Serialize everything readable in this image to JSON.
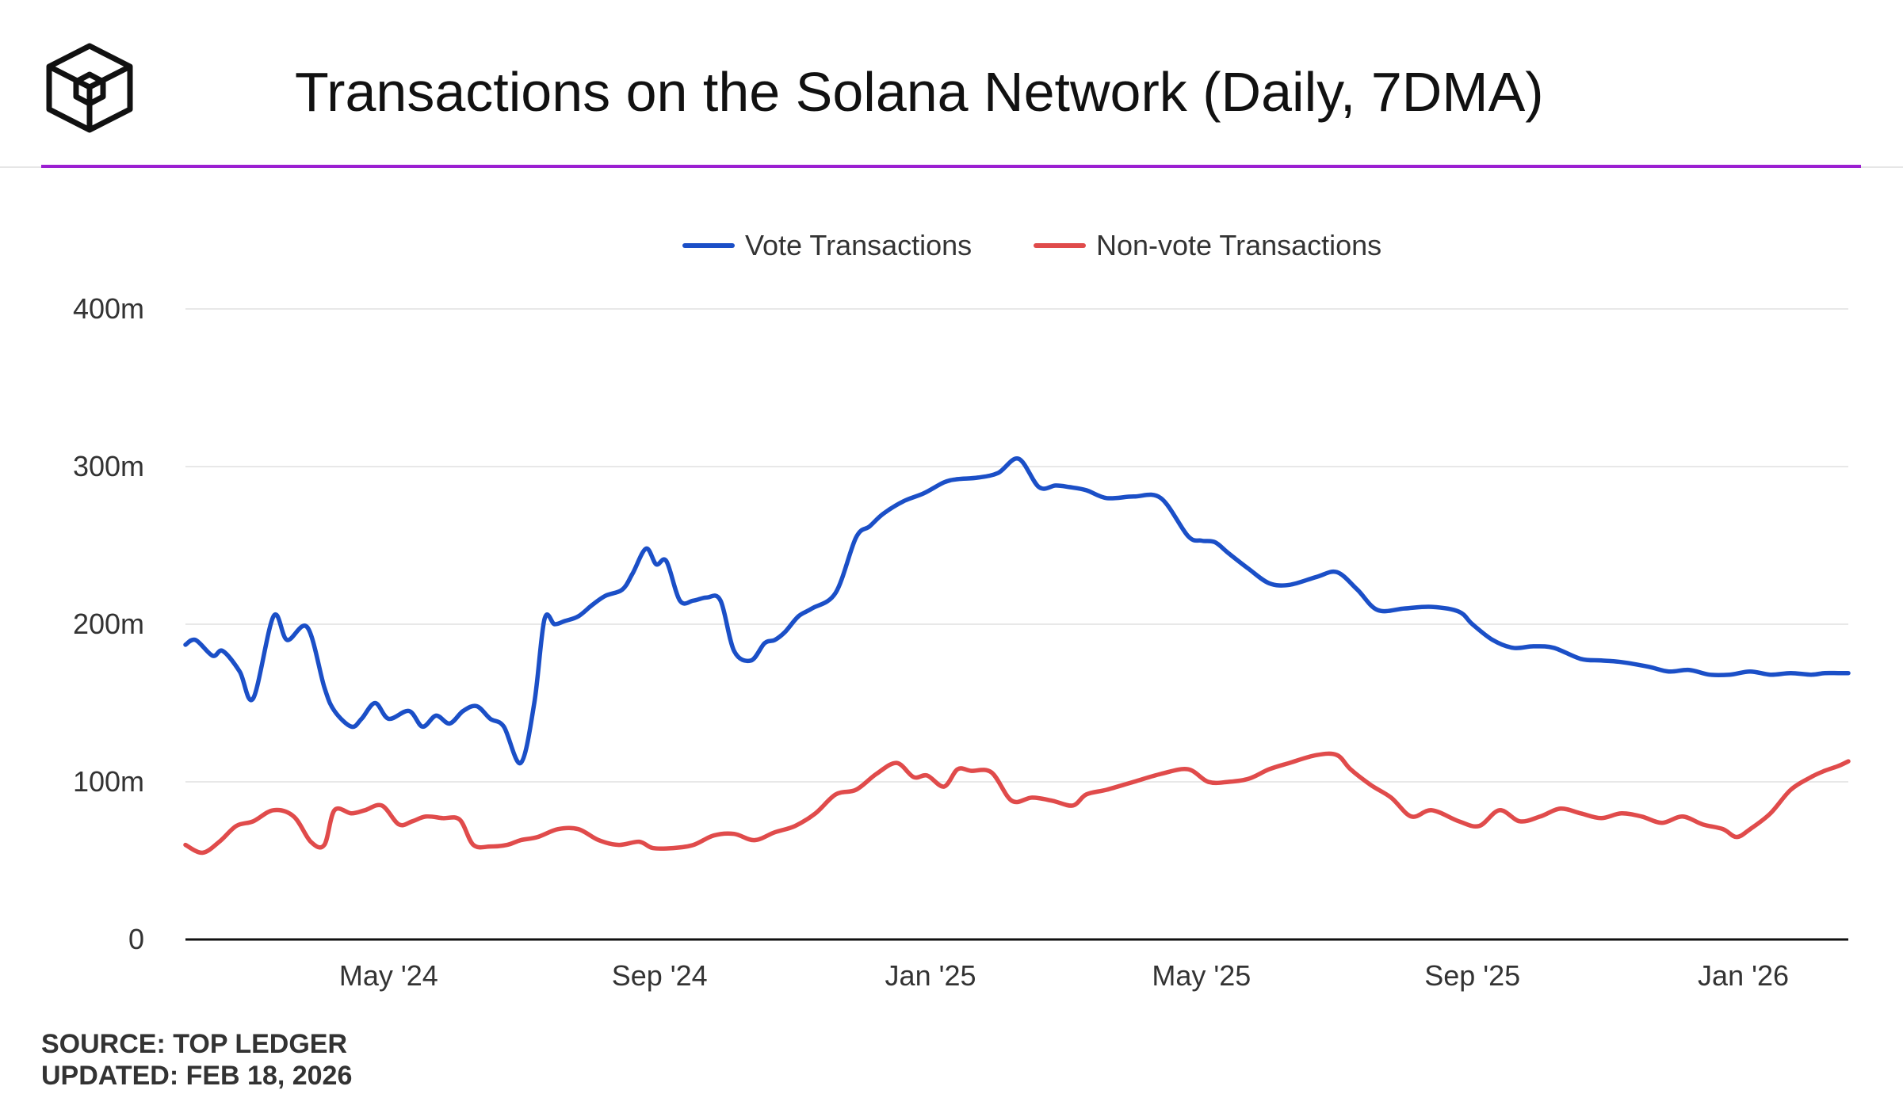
{
  "header": {
    "title": "Transactions on the Solana Network (Daily, 7DMA)",
    "accent_color": "#9b1fd1"
  },
  "footer": {
    "source": "SOURCE: TOP LEDGER",
    "updated": "UPDATED: FEB 18, 2026"
  },
  "chart_data": {
    "type": "line",
    "title": "Transactions on the Solana Network (Daily, 7DMA)",
    "xlabel": "",
    "ylabel": "",
    "ylim": [
      0,
      400
    ],
    "y_unit": "millions",
    "yticks": [
      0,
      100,
      200,
      300,
      400
    ],
    "ytick_labels": [
      "0",
      "100m",
      "200m",
      "300m",
      "400m"
    ],
    "xlim": [
      0,
      24.55
    ],
    "x_unit": "months since Feb 1, 2024",
    "xticks": [
      3,
      7,
      11,
      15,
      19,
      23
    ],
    "xtick_labels": [
      "May '24",
      "Sep '24",
      "Jan '25",
      "May '25",
      "Sep '25",
      "Jan '26"
    ],
    "grid": true,
    "legend_position": "top-center",
    "series": [
      {
        "name": "Vote Transactions",
        "color": "#1b4fc7",
        "x": [
          0,
          0.15,
          0.4,
          0.55,
          0.8,
          1.0,
          1.3,
          1.5,
          1.8,
          2.05,
          2.2,
          2.45,
          2.6,
          2.8,
          3.0,
          3.3,
          3.5,
          3.7,
          3.9,
          4.1,
          4.3,
          4.5,
          4.7,
          4.95,
          5.15,
          5.3,
          5.45,
          5.6,
          5.8,
          6.0,
          6.2,
          6.45,
          6.6,
          6.8,
          6.95,
          7.1,
          7.3,
          7.5,
          7.7,
          7.9,
          8.1,
          8.35,
          8.55,
          8.7,
          8.85,
          9.05,
          9.25,
          9.6,
          9.9,
          10.1,
          10.3,
          10.6,
          10.9,
          11.2,
          11.4,
          11.7,
          12.0,
          12.3,
          12.6,
          12.85,
          13.05,
          13.3,
          13.6,
          14.0,
          14.4,
          14.8,
          15.0,
          15.2,
          15.4,
          15.7,
          16.0,
          16.3,
          16.7,
          17.0,
          17.3,
          17.6,
          18.0,
          18.4,
          18.8,
          19.0,
          19.3,
          19.6,
          19.9,
          20.2,
          20.6,
          20.9,
          21.2,
          21.6,
          21.9,
          22.2,
          22.5,
          22.8,
          23.1,
          23.4,
          23.7,
          24.0,
          24.2,
          24.4,
          24.55
        ],
        "values": [
          187,
          190,
          180,
          183,
          170,
          153,
          205,
          190,
          198,
          160,
          145,
          135,
          140,
          150,
          140,
          145,
          135,
          142,
          137,
          145,
          148,
          140,
          135,
          112,
          150,
          203,
          200,
          202,
          205,
          212,
          218,
          222,
          232,
          248,
          238,
          240,
          215,
          215,
          217,
          215,
          183,
          177,
          188,
          190,
          195,
          205,
          210,
          220,
          255,
          262,
          270,
          278,
          283,
          290,
          292,
          293,
          296,
          305,
          287,
          288,
          287,
          285,
          280,
          281,
          280,
          256,
          253,
          252,
          245,
          235,
          226,
          225,
          230,
          233,
          222,
          209,
          210,
          211,
          208,
          200,
          190,
          185,
          186,
          185,
          178,
          177,
          176,
          173,
          170,
          171,
          168,
          168,
          170,
          168,
          169,
          168,
          169,
          169,
          169
        ]
      },
      {
        "name": "Non-vote Transactions",
        "color": "#e04b4b",
        "x": [
          0,
          0.25,
          0.5,
          0.75,
          1.0,
          1.3,
          1.6,
          1.85,
          2.05,
          2.2,
          2.45,
          2.65,
          2.9,
          3.15,
          3.35,
          3.55,
          3.8,
          4.05,
          4.25,
          4.5,
          4.75,
          4.95,
          5.2,
          5.5,
          5.8,
          6.1,
          6.4,
          6.7,
          6.9,
          7.2,
          7.5,
          7.8,
          8.1,
          8.4,
          8.7,
          9.0,
          9.3,
          9.6,
          9.9,
          10.2,
          10.5,
          10.75,
          10.95,
          11.2,
          11.4,
          11.6,
          11.9,
          12.2,
          12.5,
          12.8,
          13.1,
          13.3,
          13.6,
          14.0,
          14.4,
          14.8,
          15.1,
          15.4,
          15.7,
          16.0,
          16.3,
          16.7,
          17.0,
          17.2,
          17.5,
          17.8,
          18.1,
          18.4,
          18.8,
          19.1,
          19.4,
          19.7,
          20.0,
          20.3,
          20.6,
          20.9,
          21.2,
          21.5,
          21.8,
          22.1,
          22.4,
          22.7,
          22.9,
          23.1,
          23.4,
          23.7,
          24.0,
          24.2,
          24.4,
          24.55
        ],
        "values": [
          60,
          55,
          62,
          72,
          75,
          82,
          78,
          62,
          60,
          82,
          80,
          82,
          85,
          73,
          75,
          78,
          77,
          76,
          60,
          59,
          60,
          63,
          65,
          70,
          70,
          63,
          60,
          62,
          58,
          58,
          60,
          66,
          67,
          63,
          68,
          72,
          80,
          92,
          95,
          105,
          112,
          103,
          104,
          97,
          108,
          107,
          106,
          88,
          90,
          88,
          85,
          92,
          95,
          100,
          105,
          108,
          100,
          100,
          102,
          108,
          112,
          117,
          117,
          108,
          98,
          90,
          78,
          82,
          75,
          72,
          82,
          75,
          78,
          83,
          80,
          77,
          80,
          78,
          74,
          78,
          73,
          70,
          65,
          70,
          80,
          95,
          103,
          107,
          110,
          113
        ]
      }
    ]
  }
}
